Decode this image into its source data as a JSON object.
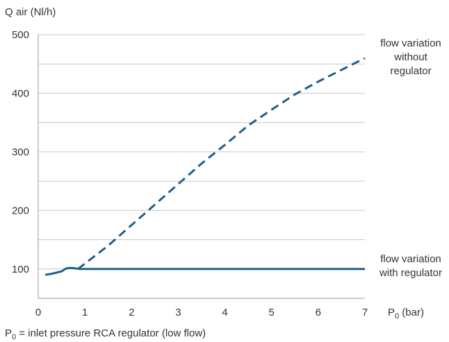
{
  "chart_data": {
    "type": "line",
    "ylabel": "Q air (Nl/h)",
    "xlabel_main": "P",
    "xlabel_sub": "0",
    "xlabel_unit": " (bar)",
    "xlim": [
      0,
      7
    ],
    "ylim": [
      50,
      500
    ],
    "x_ticks": [
      0,
      1,
      2,
      3,
      4,
      5,
      6,
      7
    ],
    "y_ticks": [
      100,
      200,
      300,
      400,
      500
    ],
    "grid": true,
    "line_color": "#1f5f8b",
    "series": [
      {
        "key": "without",
        "style": "dashed",
        "x": [
          0.85,
          1.5,
          2,
          2.5,
          3,
          3.5,
          4,
          4.5,
          5,
          5.5,
          6,
          6.5,
          7
        ],
        "y": [
          100,
          140,
          175,
          210,
          245,
          280,
          312,
          345,
          372,
          398,
          420,
          440,
          460
        ]
      },
      {
        "key": "with",
        "style": "solid",
        "x": [
          0.15,
          0.3,
          0.5,
          0.6,
          0.7,
          0.8,
          0.9,
          1.0,
          2,
          3,
          4,
          5,
          6,
          7
        ],
        "y": [
          90,
          92,
          96,
          101,
          102,
          101,
          100,
          100,
          100,
          100,
          100,
          100,
          100,
          100
        ]
      }
    ],
    "annotations": {
      "without": [
        "flow variation",
        "without",
        "regulator"
      ],
      "with": [
        "flow variation",
        "with regulator"
      ]
    }
  },
  "footnote": {
    "main": "P",
    "sub": "0",
    "rest": " = inlet pressure RCA regulator (low flow)"
  }
}
